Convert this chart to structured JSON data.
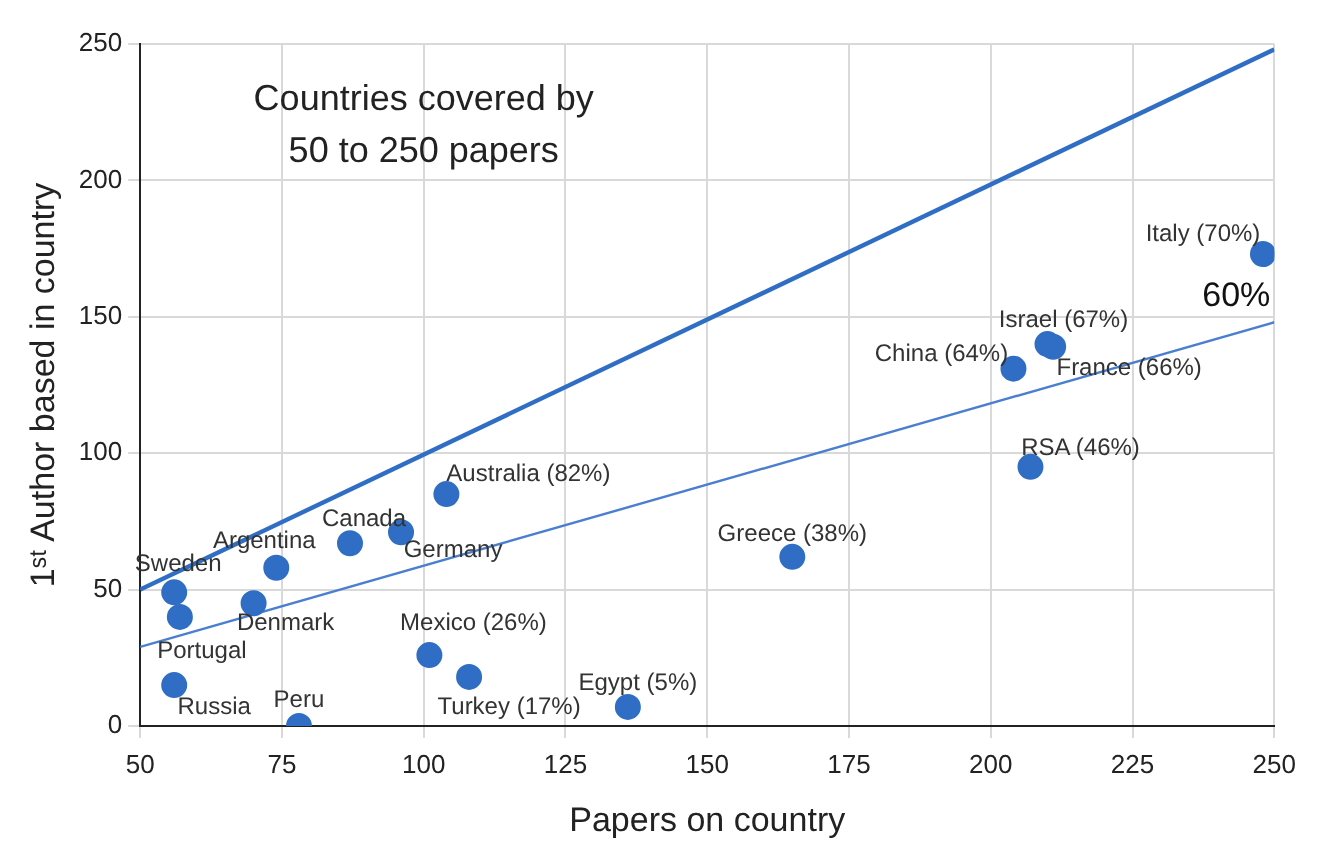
{
  "chart_data": {
    "type": "scatter",
    "title": "Countries covered by\n50 to 250 papers",
    "xlabel": "Papers on country",
    "ylabel": "1ˢᵗ Author based in country",
    "xlim": [
      50,
      250
    ],
    "xticks": [
      50,
      75,
      100,
      125,
      150,
      175,
      200,
      225,
      250
    ],
    "ylim": [
      0,
      250
    ],
    "yticks": [
      0,
      50,
      100,
      150,
      200,
      250
    ],
    "grid": true,
    "marker": "circle",
    "series": [
      {
        "color": "#2f6ec4",
        "x": [
          56,
          57,
          56,
          70,
          74,
          78,
          87,
          96,
          104,
          101,
          108,
          136,
          165,
          204,
          210,
          211,
          207,
          248
        ],
        "values": [
          49,
          40,
          15,
          45,
          58,
          0,
          67,
          71,
          85,
          26,
          18,
          7,
          62,
          131,
          140,
          139,
          95,
          173
        ]
      },
      {
        "type": "line",
        "marker": "none",
        "color": "#2f6ec4",
        "x": [
          50,
          250
        ],
        "values": [
          50,
          248
        ]
      },
      {
        "type": "line",
        "marker": "none",
        "color": "#4a7fcf",
        "x": [
          50,
          250
        ],
        "values": [
          29,
          148
        ]
      }
    ],
    "annotations": [
      {
        "text": "Italy (70%)",
        "x": 248,
        "y": 173
      },
      {
        "text": "60%",
        "x": 250,
        "y": 148
      },
      {
        "text": "Israel (67%)",
        "x": 210,
        "y": 140
      },
      {
        "text": "China (64%)",
        "x": 204,
        "y": 131
      },
      {
        "text": "France (66%)",
        "x": 211,
        "y": 139
      },
      {
        "text": "RSA (46%)",
        "x": 207,
        "y": 95
      },
      {
        "text": "Greece (38%)",
        "x": 165,
        "y": 62
      },
      {
        "text": "Australia (82%)",
        "x": 104,
        "y": 85
      },
      {
        "text": "Canada",
        "x": 87,
        "y": 67
      },
      {
        "text": "Argentina",
        "x": 74,
        "y": 58
      },
      {
        "text": "Germany",
        "x": 96,
        "y": 71
      },
      {
        "text": "Sweden",
        "x": 56,
        "y": 49
      },
      {
        "text": "Denmark",
        "x": 70,
        "y": 45
      },
      {
        "text": "Portugal",
        "x": 57,
        "y": 40
      },
      {
        "text": "Mexico (26%)",
        "x": 101,
        "y": 26
      },
      {
        "text": "Russia",
        "x": 56,
        "y": 15
      },
      {
        "text": "Peru",
        "x": 78,
        "y": 0
      },
      {
        "text": "Turkey (17%)",
        "x": 108,
        "y": 18
      },
      {
        "text": "Egypt (5%)",
        "x": 136,
        "y": 7
      }
    ]
  }
}
